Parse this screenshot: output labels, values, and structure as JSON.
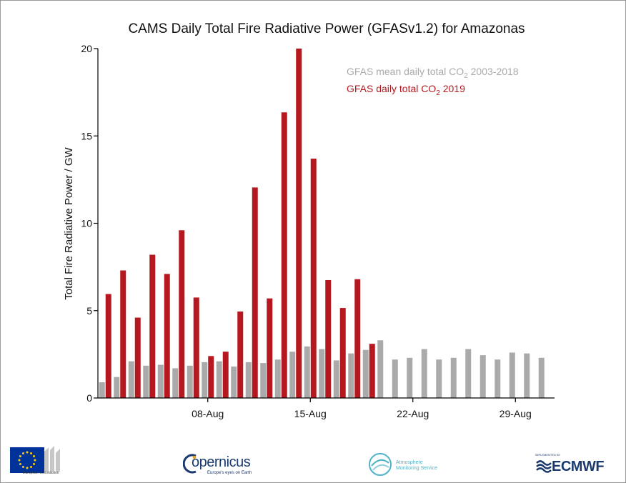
{
  "colors": {
    "mean": "#aaaaaa",
    "year": "#b5191f",
    "axis": "#000000"
  },
  "chart_data": {
    "type": "bar",
    "title": "CAMS Daily Total Fire Radiative Power (GFASv1.2) for Amazonas",
    "xlabel": "",
    "ylabel": "Total Fire Radiative Power / GW",
    "ylim": [
      0,
      20
    ],
    "yticks": [
      "0",
      "5",
      "10",
      "15",
      "20"
    ],
    "xticks": [
      "08-Aug",
      "15-Aug",
      "22-Aug",
      "29-Aug"
    ],
    "xtick_days": [
      8,
      15,
      22,
      29
    ],
    "days": [
      1,
      2,
      3,
      4,
      5,
      6,
      7,
      8,
      9,
      10,
      11,
      12,
      13,
      14,
      15,
      16,
      17,
      18,
      19,
      20,
      21,
      22,
      23,
      24,
      25,
      26,
      27,
      28,
      29,
      30,
      31
    ],
    "legend_position": "top-right",
    "series": [
      {
        "name": "GFAS mean daily total CO2 2003-2018",
        "label_main": "GFAS mean daily total CO",
        "label_sub": "2",
        "label_end": " 2003-2018",
        "values": [
          0.9,
          1.2,
          2.1,
          1.85,
          1.9,
          1.7,
          1.85,
          2.05,
          2.1,
          1.8,
          2.05,
          2.0,
          2.2,
          2.65,
          2.95,
          2.8,
          2.15,
          2.55,
          2.75,
          3.3,
          2.2,
          2.3,
          2.8,
          2.2,
          2.3,
          2.8,
          2.45,
          2.2,
          2.6,
          2.55,
          2.3
        ]
      },
      {
        "name": "GFAS daily total CO2 2019",
        "label_main": "GFAS daily total CO",
        "label_sub": "2",
        "label_end": " 2019",
        "values": [
          5.95,
          7.3,
          4.6,
          8.2,
          7.1,
          9.6,
          5.75,
          2.4,
          2.65,
          4.95,
          12.05,
          5.7,
          16.35,
          20.0,
          13.7,
          6.75,
          5.15,
          6.8,
          3.1
        ]
      }
    ]
  },
  "footer": {
    "eu_label": "European Commission",
    "copernicus_label": "opernicus",
    "copernicus_tagline": "Europe's eyes on Earth",
    "ams_line1": "Atmosphere",
    "ams_line2": "Monitoring Service",
    "ecmwf_implemented": "IMPLEMENTED BY",
    "ecmwf_label": "ECMWF"
  }
}
